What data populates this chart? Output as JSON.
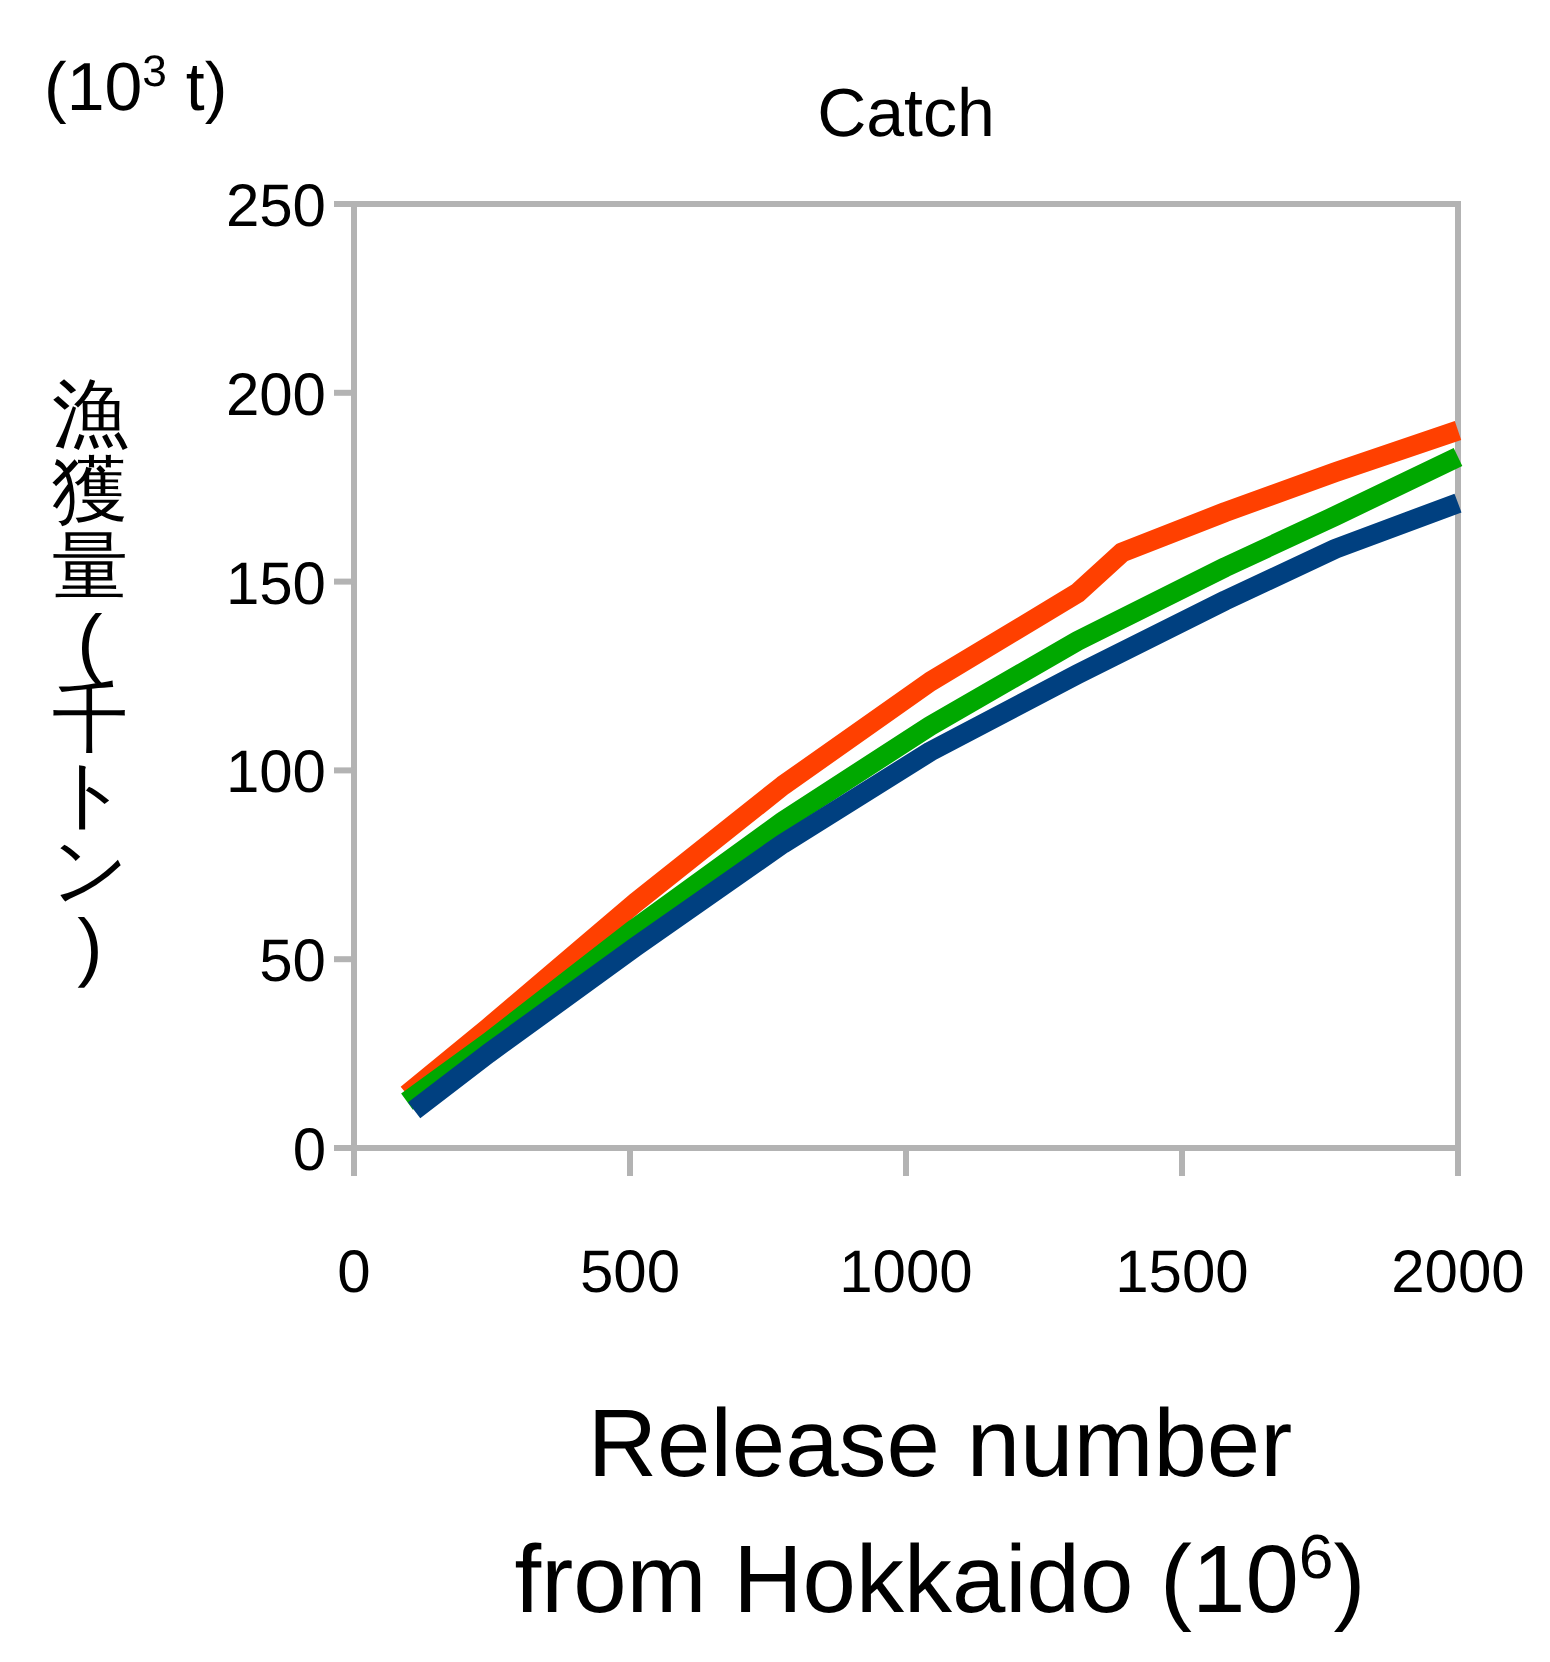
{
  "chart_data": {
    "type": "line",
    "title": "Catch",
    "xlabel": "Release number from Hokkaido (10$^{6}$)",
    "ylabel": "漁獲量(千トン)",
    "annotations": [
      "(10$^{3}$ t)"
    ],
    "xlim": [
      0,
      2000
    ],
    "xticks": [
      0,
      500,
      1000,
      1500,
      2000
    ],
    "ylim": [
      0,
      250
    ],
    "yticks": [
      0,
      50,
      100,
      150,
      200,
      250
    ],
    "series": [
      {
        "color": "#ff4000",
        "x": [
          96,
          243,
          510,
          777,
          1044,
          1311,
          1391,
          1578,
          1778,
          2000
        ],
        "values": [
          14.2,
          31.8,
          65,
          96,
          123.5,
          147,
          157.7,
          168.4,
          179,
          190
        ]
      },
      {
        "color": "#00a800",
        "x": [
          96,
          243,
          510,
          777,
          1044,
          1311,
          1578,
          1778,
          2000
        ],
        "values": [
          12.3,
          27.9,
          58.2,
          86.5,
          111.8,
          134.3,
          153.8,
          167.4,
          183
        ]
      },
      {
        "color": "#004080",
        "x": [
          109,
          243,
          510,
          777,
          1044,
          1311,
          1578,
          1778,
          2000
        ],
        "values": [
          10,
          25,
          53.3,
          80.6,
          105,
          125.5,
          145,
          158.7,
          170.8
        ]
      }
    ]
  }
}
